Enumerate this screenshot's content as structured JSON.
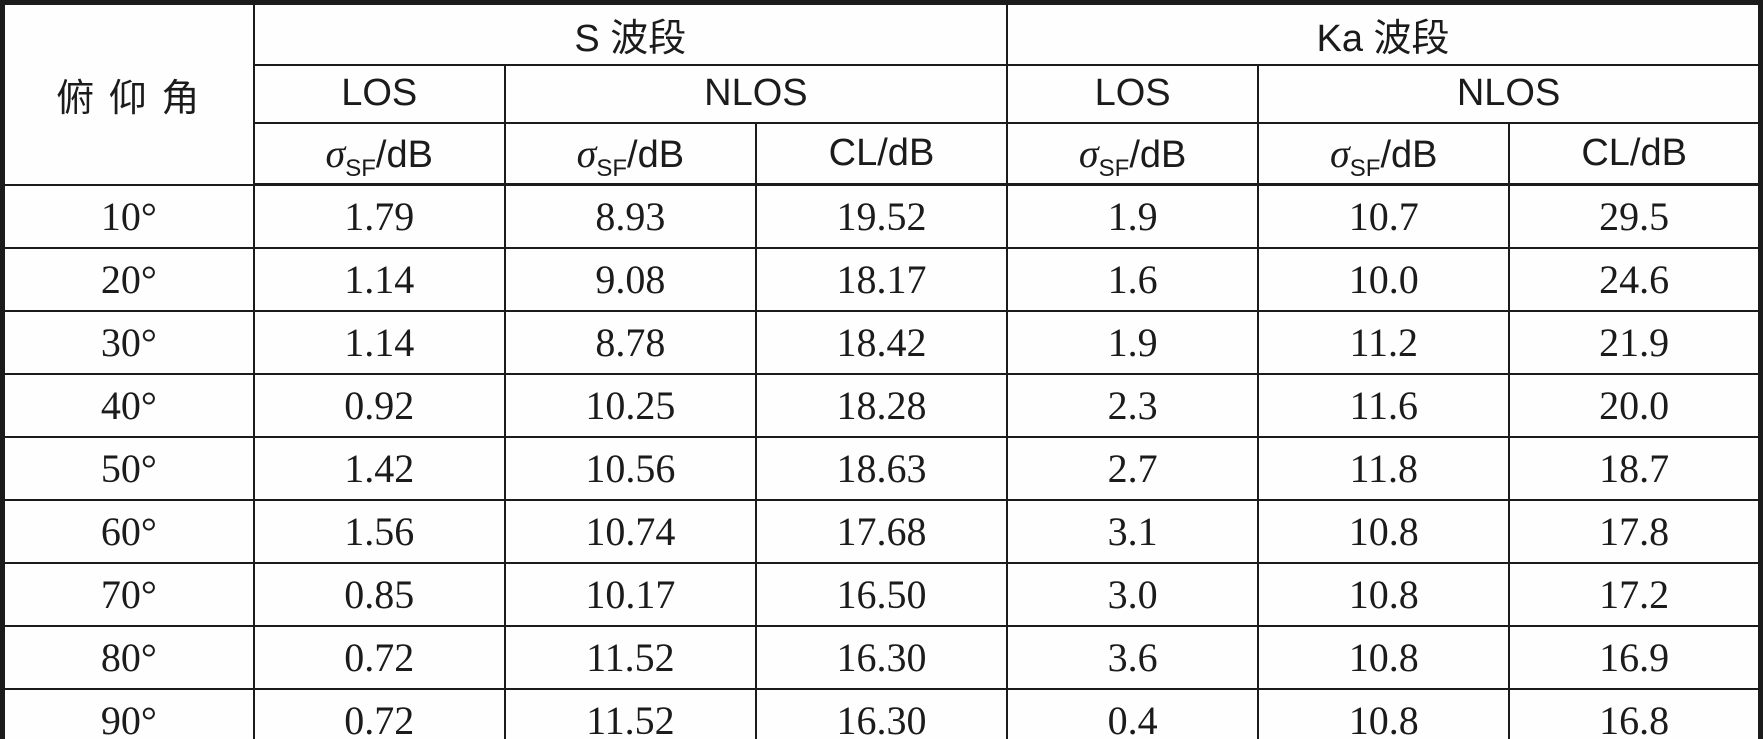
{
  "page": {
    "background": "#ffffff",
    "border_color": "#1b1b1b",
    "text_color": "#1b1b1b"
  },
  "table": {
    "corner_header": "俯 仰 角",
    "bands": [
      {
        "label": "S 波段"
      },
      {
        "label": "Ka 波段"
      }
    ],
    "condition_headers": {
      "los": "LOS",
      "nlos": "NLOS"
    },
    "metric_headers": {
      "sigma_symbol": "σ",
      "sigma_sub": "SF",
      "sigma_unit": "/dB",
      "cl": "CL/dB"
    },
    "rows": [
      {
        "angle": "10°",
        "s_los_sigma": "1.79",
        "s_nlos_sigma": "8.93",
        "s_nlos_cl": "19.52",
        "ka_los_sigma": "1.9",
        "ka_nlos_sigma": "10.7",
        "ka_nlos_cl": "29.5"
      },
      {
        "angle": "20°",
        "s_los_sigma": "1.14",
        "s_nlos_sigma": "9.08",
        "s_nlos_cl": "18.17",
        "ka_los_sigma": "1.6",
        "ka_nlos_sigma": "10.0",
        "ka_nlos_cl": "24.6"
      },
      {
        "angle": "30°",
        "s_los_sigma": "1.14",
        "s_nlos_sigma": "8.78",
        "s_nlos_cl": "18.42",
        "ka_los_sigma": "1.9",
        "ka_nlos_sigma": "11.2",
        "ka_nlos_cl": "21.9"
      },
      {
        "angle": "40°",
        "s_los_sigma": "0.92",
        "s_nlos_sigma": "10.25",
        "s_nlos_cl": "18.28",
        "ka_los_sigma": "2.3",
        "ka_nlos_sigma": "11.6",
        "ka_nlos_cl": "20.0"
      },
      {
        "angle": "50°",
        "s_los_sigma": "1.42",
        "s_nlos_sigma": "10.56",
        "s_nlos_cl": "18.63",
        "ka_los_sigma": "2.7",
        "ka_nlos_sigma": "11.8",
        "ka_nlos_cl": "18.7"
      },
      {
        "angle": "60°",
        "s_los_sigma": "1.56",
        "s_nlos_sigma": "10.74",
        "s_nlos_cl": "17.68",
        "ka_los_sigma": "3.1",
        "ka_nlos_sigma": "10.8",
        "ka_nlos_cl": "17.8"
      },
      {
        "angle": "70°",
        "s_los_sigma": "0.85",
        "s_nlos_sigma": "10.17",
        "s_nlos_cl": "16.50",
        "ka_los_sigma": "3.0",
        "ka_nlos_sigma": "10.8",
        "ka_nlos_cl": "17.2"
      },
      {
        "angle": "80°",
        "s_los_sigma": "0.72",
        "s_nlos_sigma": "11.52",
        "s_nlos_cl": "16.30",
        "ka_los_sigma": "3.6",
        "ka_nlos_sigma": "10.8",
        "ka_nlos_cl": "16.9"
      },
      {
        "angle": "90°",
        "s_los_sigma": "0.72",
        "s_nlos_sigma": "11.52",
        "s_nlos_cl": "16.30",
        "ka_los_sigma": "0.4",
        "ka_nlos_sigma": "10.8",
        "ka_nlos_cl": "16.8"
      }
    ]
  },
  "chart_data": {
    "type": "table",
    "columns": [
      "俯仰角",
      "S波段 LOS σSF/dB",
      "S波段 NLOS σSF/dB",
      "S波段 NLOS CL/dB",
      "Ka波段 LOS σSF/dB",
      "Ka波段 NLOS σSF/dB",
      "Ka波段 NLOS CL/dB"
    ],
    "rows": [
      [
        "10°",
        1.79,
        8.93,
        19.52,
        1.9,
        10.7,
        29.5
      ],
      [
        "20°",
        1.14,
        9.08,
        18.17,
        1.6,
        10.0,
        24.6
      ],
      [
        "30°",
        1.14,
        8.78,
        18.42,
        1.9,
        11.2,
        21.9
      ],
      [
        "40°",
        0.92,
        10.25,
        18.28,
        2.3,
        11.6,
        20.0
      ],
      [
        "50°",
        1.42,
        10.56,
        18.63,
        2.7,
        11.8,
        18.7
      ],
      [
        "60°",
        1.56,
        10.74,
        17.68,
        3.1,
        10.8,
        17.8
      ],
      [
        "70°",
        0.85,
        10.17,
        16.5,
        3.0,
        10.8,
        17.2
      ],
      [
        "80°",
        0.72,
        11.52,
        16.3,
        3.6,
        10.8,
        16.9
      ],
      [
        "90°",
        0.72,
        11.52,
        16.3,
        0.4,
        10.8,
        16.8
      ]
    ]
  }
}
